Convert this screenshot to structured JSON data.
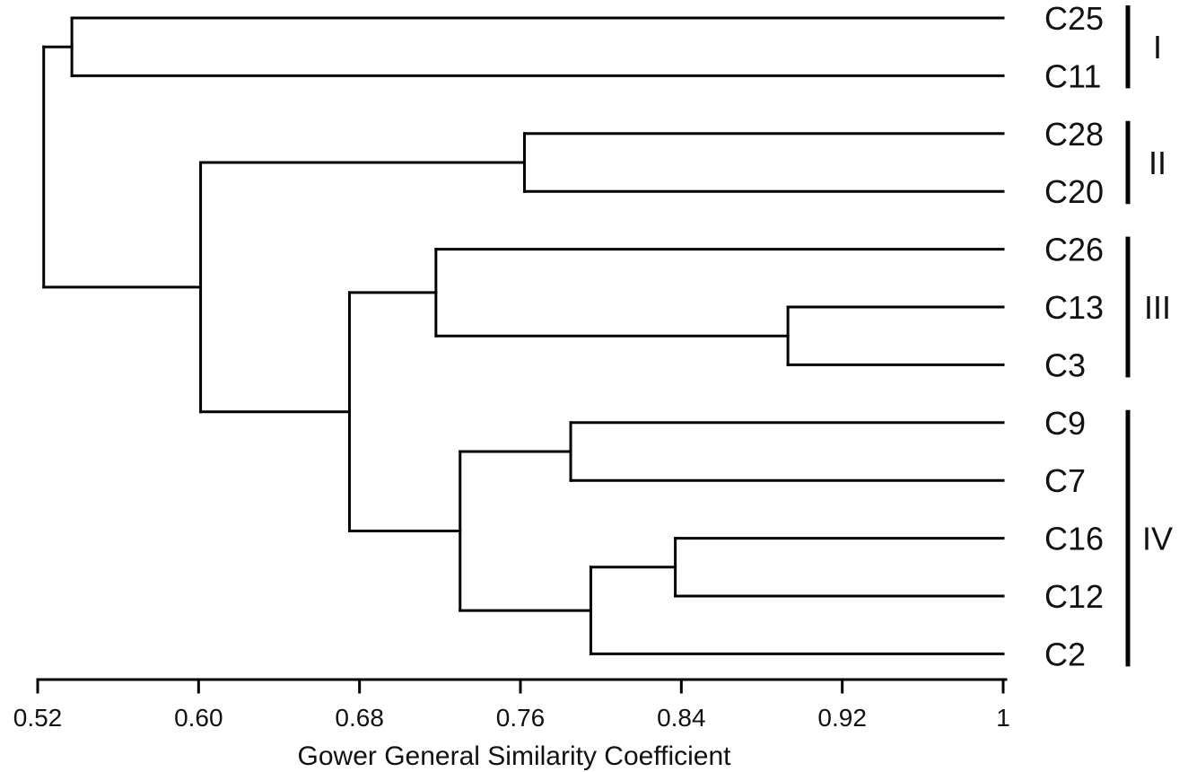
{
  "chart_data": {
    "type": "dendrogram",
    "title": "",
    "xlabel": "Gower General Similarity Coefficient",
    "ylabel": "",
    "xlim": [
      0.52,
      1
    ],
    "x_ticks": [
      "0.52",
      "0.60",
      "0.68",
      "0.76",
      "0.84",
      "0.92",
      "1"
    ],
    "x_tick_values": [
      0.52,
      0.6,
      0.68,
      0.76,
      0.84,
      0.92,
      1.0
    ],
    "leaves": [
      "C25",
      "C11",
      "C28",
      "C20",
      "C26",
      "C13",
      "C3",
      "C9",
      "C7",
      "C16",
      "C12",
      "C2"
    ],
    "merges": [
      {
        "id": "m1",
        "children": [
          "C25",
          "C11"
        ],
        "similarity": 0.537
      },
      {
        "id": "m2",
        "children": [
          "C28",
          "C20"
        ],
        "similarity": 0.762
      },
      {
        "id": "m3",
        "children": [
          "C13",
          "C3"
        ],
        "similarity": 0.893
      },
      {
        "id": "m4",
        "children": [
          "C26",
          "m3"
        ],
        "similarity": 0.718
      },
      {
        "id": "m5",
        "children": [
          "C9",
          "C7"
        ],
        "similarity": 0.785
      },
      {
        "id": "m6",
        "children": [
          "C16",
          "C12"
        ],
        "similarity": 0.837
      },
      {
        "id": "m7",
        "children": [
          "m6",
          "C2"
        ],
        "similarity": 0.795
      },
      {
        "id": "m8",
        "children": [
          "m5",
          "m7"
        ],
        "similarity": 0.73
      },
      {
        "id": "m9",
        "children": [
          "m4",
          "m8"
        ],
        "similarity": 0.675
      },
      {
        "id": "m10",
        "children": [
          "m2",
          "m9"
        ],
        "similarity": 0.601
      },
      {
        "id": "m11",
        "children": [
          "m1",
          "m10"
        ],
        "similarity": 0.523
      }
    ],
    "groups": [
      {
        "label": "I",
        "leaves": [
          "C25",
          "C11"
        ]
      },
      {
        "label": "II",
        "leaves": [
          "C28",
          "C20"
        ]
      },
      {
        "label": "III",
        "leaves": [
          "C26",
          "C13",
          "C3"
        ]
      },
      {
        "label": "IV",
        "leaves": [
          "C9",
          "C7",
          "C16",
          "C12",
          "C2"
        ]
      }
    ]
  }
}
